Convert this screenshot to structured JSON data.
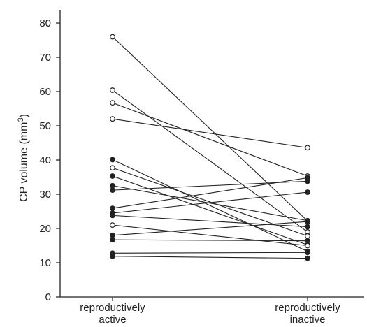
{
  "chart_data": {
    "type": "line",
    "title": "",
    "ylabel_text": "CP volume (mm",
    "ylabel_superscript": "3",
    "ylabel_close": ")",
    "ylim": [
      0,
      85
    ],
    "yticks": [
      0,
      10,
      20,
      30,
      40,
      50,
      60,
      70,
      80
    ],
    "categories": [
      [
        "reproductively",
        "active"
      ],
      [
        "reproductively",
        "inactive"
      ]
    ],
    "marker_fill": {
      "open": "white",
      "filled": "black"
    },
    "pairs": [
      {
        "active": 76.0,
        "inactive": 22.2,
        "marker": "open"
      },
      {
        "active": 60.4,
        "inactive": 19.0,
        "marker": "open"
      },
      {
        "active": 56.7,
        "inactive": 35.3,
        "marker": "open"
      },
      {
        "active": 52.0,
        "inactive": 43.6,
        "marker": "open"
      },
      {
        "active": 40.1,
        "inactive": 13.3,
        "marker": "filled"
      },
      {
        "active": 37.7,
        "inactive": 17.8,
        "marker": "open"
      },
      {
        "active": 35.3,
        "inactive": 15.2,
        "marker": "filled"
      },
      {
        "active": 32.5,
        "inactive": 22.3,
        "marker": "filled"
      },
      {
        "active": 31.2,
        "inactive": 33.8,
        "marker": "filled"
      },
      {
        "active": 25.9,
        "inactive": 34.8,
        "marker": "filled"
      },
      {
        "active": 24.5,
        "inactive": 30.6,
        "marker": "filled"
      },
      {
        "active": 23.8,
        "inactive": 20.5,
        "marker": "filled"
      },
      {
        "active": 21.0,
        "inactive": 15.0,
        "marker": "open"
      },
      {
        "active": 18.0,
        "inactive": 22.0,
        "marker": "filled"
      },
      {
        "active": 16.7,
        "inactive": 16.4,
        "marker": "filled"
      },
      {
        "active": 12.8,
        "inactive": 13.0,
        "marker": "filled"
      },
      {
        "active": 11.9,
        "inactive": 11.3,
        "marker": "filled"
      }
    ]
  }
}
